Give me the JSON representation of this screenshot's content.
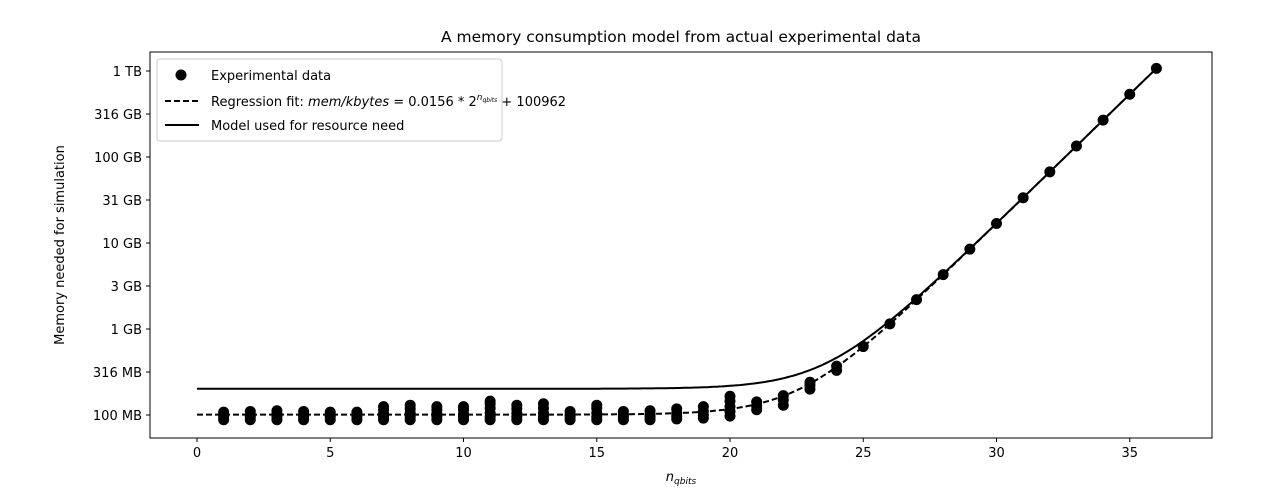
{
  "chart_data": {
    "type": "scatter",
    "title": "A memory consumption model from actual experimental data",
    "xlabel": "n",
    "xlabel_sub": "qbits",
    "ylabel": "Memory needed for simulation",
    "y_scale": "log",
    "y_units": "MB",
    "xlim": [
      -1.75,
      38
    ],
    "ylim": [
      60,
      1500000
    ],
    "grid": false,
    "legend_placement": "top-left",
    "x_ticks": [
      0,
      5,
      10,
      15,
      20,
      25,
      30,
      35
    ],
    "y_ticks": [
      {
        "value": 100,
        "label": "100 MB"
      },
      {
        "value": 316,
        "label": "316 MB"
      },
      {
        "value": 1000,
        "label": "1 GB"
      },
      {
        "value": 3162,
        "label": "3 GB"
      },
      {
        "value": 10000,
        "label": "10 GB"
      },
      {
        "value": 31623,
        "label": "31 GB"
      },
      {
        "value": 100000,
        "label": "100 GB"
      },
      {
        "value": 316228,
        "label": "316 GB"
      },
      {
        "value": 1000000,
        "label": "1 TB"
      }
    ],
    "series": [
      {
        "name": "Experimental data",
        "style": "markers",
        "points": [
          [
            1,
            [
              88,
              95,
              101,
              108
            ]
          ],
          [
            2,
            [
              88,
              95,
              101,
              110
            ]
          ],
          [
            3,
            [
              88,
              95,
              103,
              112
            ]
          ],
          [
            4,
            [
              88,
              95,
              101,
              110
            ]
          ],
          [
            5,
            [
              88,
              95,
              101,
              108
            ]
          ],
          [
            6,
            [
              88,
              95,
              101,
              108
            ]
          ],
          [
            7,
            [
              88,
              95,
              103,
              115,
              125
            ]
          ],
          [
            8,
            [
              88,
              95,
              105,
              118,
              130
            ]
          ],
          [
            9,
            [
              88,
              95,
              103,
              115,
              125
            ]
          ],
          [
            10,
            [
              88,
              95,
              103,
              115,
              125
            ]
          ],
          [
            11,
            [
              88,
              95,
              105,
              120,
              135,
              145
            ]
          ],
          [
            12,
            [
              88,
              95,
              105,
              118,
              130
            ]
          ],
          [
            13,
            [
              88,
              95,
              105,
              120,
              135
            ]
          ],
          [
            14,
            [
              88,
              95,
              101,
              110
            ]
          ],
          [
            15,
            [
              88,
              95,
              105,
              120,
              130
            ]
          ],
          [
            16,
            [
              88,
              95,
              101,
              110
            ]
          ],
          [
            17,
            [
              88,
              95,
              101,
              112
            ]
          ],
          [
            18,
            [
              90,
              97,
              105,
              118
            ]
          ],
          [
            19,
            [
              92,
              100,
              110,
              125
            ]
          ],
          [
            20,
            [
              97,
              110,
              125,
              145,
              165
            ]
          ],
          [
            21,
            [
              115,
              128,
              142
            ]
          ],
          [
            22,
            [
              130,
              150,
              168
            ]
          ],
          [
            23,
            [
              200,
              220,
              240
            ]
          ],
          [
            24,
            [
              330,
              370
            ]
          ],
          [
            25,
            [
              625
            ]
          ],
          [
            26,
            [
              1148
            ]
          ],
          [
            27,
            [
              2195
            ]
          ],
          [
            28,
            [
              4289
            ]
          ],
          [
            29,
            [
              8476
            ]
          ],
          [
            30,
            [
              16851
            ]
          ],
          [
            31,
            [
              33601
            ]
          ],
          [
            32,
            [
              67101
            ]
          ],
          [
            33,
            [
              134101
            ]
          ],
          [
            34,
            [
              268101
            ]
          ],
          [
            35,
            [
              536101
            ]
          ],
          [
            36,
            [
              1072101
            ]
          ]
        ]
      },
      {
        "name": "Regression fit: mem/kbytes = 0.0156 * 2^n_qbits + 100962",
        "style": "dashed",
        "coef": 0.0156,
        "intercept_kbytes": 100962,
        "x_range": [
          0,
          36
        ]
      },
      {
        "name": "Model used for resource need",
        "style": "solid",
        "coef": 0.0156,
        "intercept_kbytes": 201924,
        "x_range": [
          0,
          36
        ]
      }
    ],
    "legend": {
      "items": [
        "Experimental data",
        "Regression fit: ",
        "Model used for resource need"
      ],
      "formula": {
        "lhs": "mem/kbytes",
        "eq": " = 0.0156 * 2",
        "exp": "n",
        "exp_sub": "qbits",
        "tail": " + 100962"
      }
    },
    "color": "#000000"
  }
}
